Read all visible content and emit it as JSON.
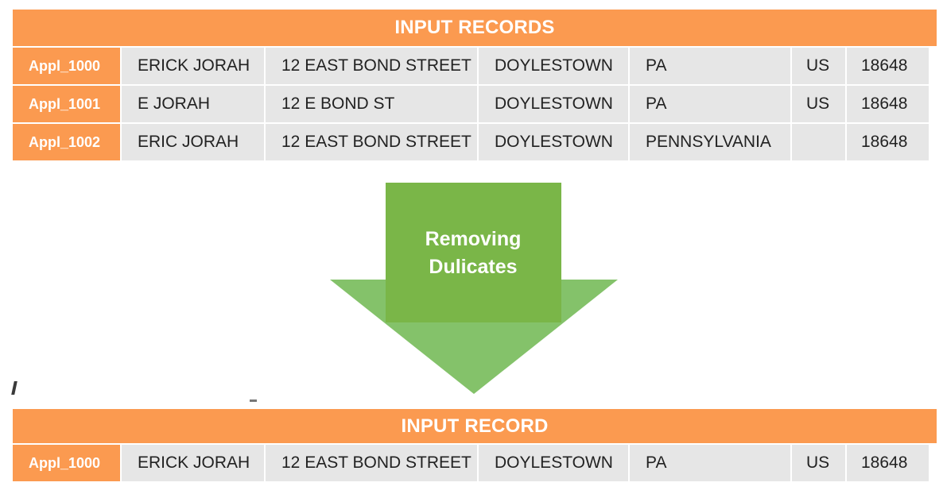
{
  "colors": {
    "header_orange": "#fb9a50",
    "id_orange": "#fb9a50",
    "cell_gray": "#e6e6e6",
    "arrow_green": "#7ab648",
    "arrow_green_light": "#84c26a"
  },
  "input_table": {
    "header": "INPUT RECORDS",
    "rows": [
      {
        "id": "Appl_1000",
        "name": "ERICK JORAH",
        "street": "12 EAST BOND STREET",
        "city": "DOYLESTOWN",
        "state": "PA",
        "country": "US",
        "zip": "18648"
      },
      {
        "id": "Appl_1001",
        "name": "E JORAH",
        "street": "12 E BOND ST",
        "city": "DOYLESTOWN",
        "state": "PA",
        "country": "US",
        "zip": "18648"
      },
      {
        "id": "Appl_1002",
        "name": "ERIC JORAH",
        "street": "12 EAST BOND STREET",
        "city": "DOYLESTOWN",
        "state": "PENNSYLVANIA",
        "country": "",
        "zip": "18648"
      }
    ]
  },
  "arrow": {
    "line1": "Removing",
    "line2": "Dulicates"
  },
  "output_table": {
    "header": "INPUT RECORD",
    "rows": [
      {
        "id": "Appl_1000",
        "name": "ERICK JORAH",
        "street": "12 EAST BOND STREET",
        "city": "DOYLESTOWN",
        "state": "PA",
        "country": "US",
        "zip": "18648"
      }
    ]
  }
}
